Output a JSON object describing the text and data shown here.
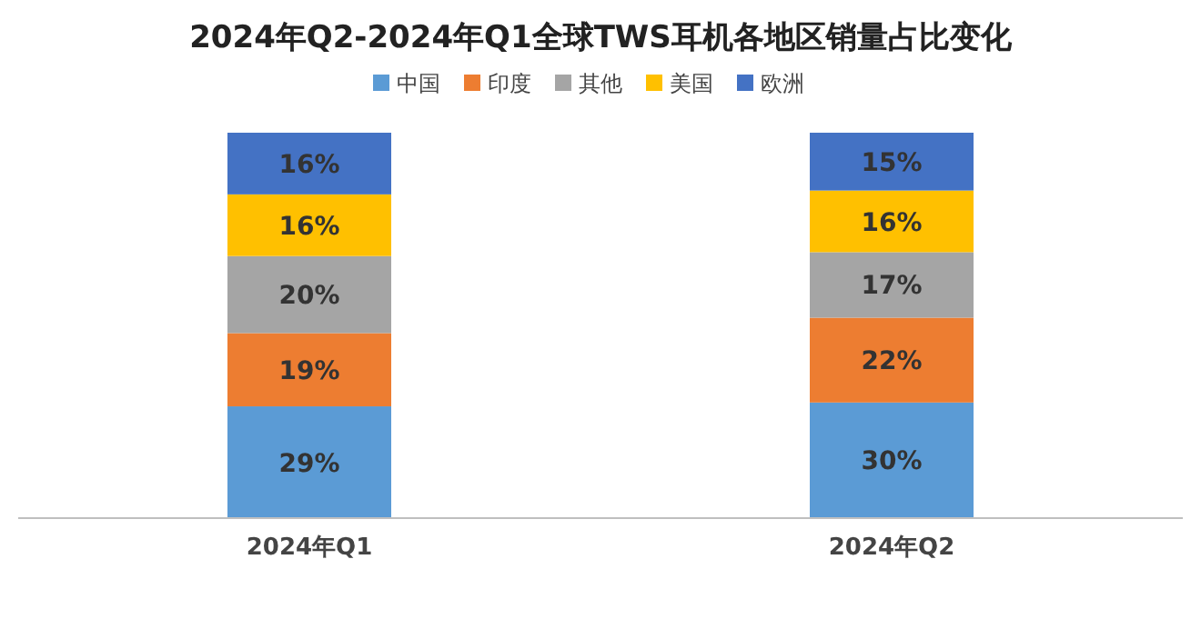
{
  "chart_data": {
    "type": "bar",
    "stacked": true,
    "title": "2024年Q2-2024年Q1全球TWS耳机各地区销量占比变化",
    "categories": [
      "2024年Q1",
      "2024年Q2"
    ],
    "legend": "top",
    "series": [
      {
        "name": "中国",
        "color": "#5b9bd5",
        "values": [
          29,
          30
        ],
        "value_labels": [
          "29%",
          "30%"
        ]
      },
      {
        "name": "印度",
        "color": "#ed7d31",
        "values": [
          19,
          22
        ],
        "value_labels": [
          "19%",
          "22%"
        ]
      },
      {
        "name": "其他",
        "color": "#a5a5a5",
        "values": [
          20,
          17
        ],
        "value_labels": [
          "20%",
          "17%"
        ]
      },
      {
        "name": "美国",
        "color": "#ffc000",
        "values": [
          16,
          16
        ],
        "value_labels": [
          "16%",
          "16%"
        ]
      },
      {
        "name": "欧洲",
        "color": "#4472c4",
        "values": [
          16,
          15
        ],
        "value_labels": [
          "16%",
          "15%"
        ]
      }
    ]
  }
}
